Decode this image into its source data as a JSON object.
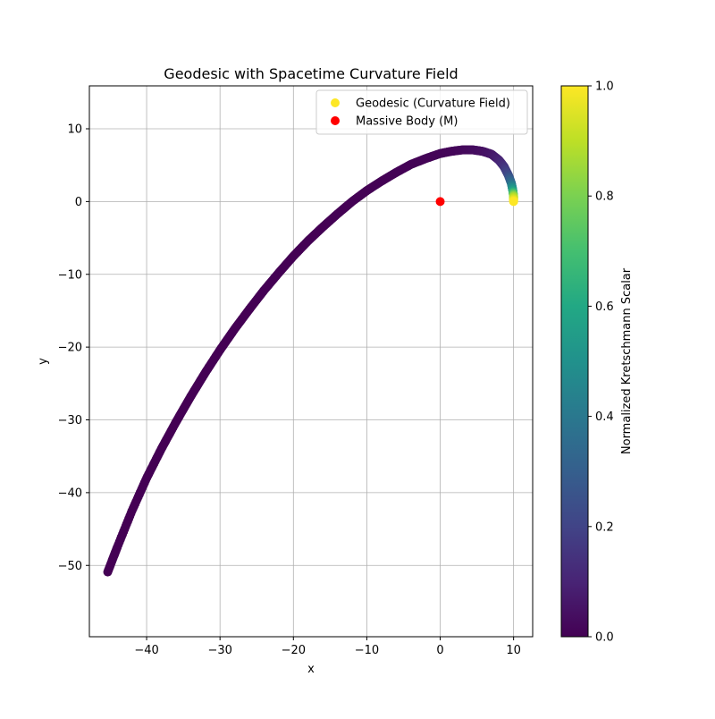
{
  "chart_data": {
    "type": "scatter",
    "title": "Geodesic with Spacetime Curvature Field",
    "xlabel": "x",
    "ylabel": "y",
    "xlim": [
      -47.8,
      12.6
    ],
    "ylim": [
      -59.8,
      15.9
    ],
    "xticks": [
      -40,
      -30,
      -20,
      -10,
      0,
      10
    ],
    "yticks": [
      -50,
      -40,
      -30,
      -20,
      -10,
      0,
      10
    ],
    "xtick_labels": [
      "−40",
      "−30",
      "−20",
      "−10",
      "0",
      "10"
    ],
    "ytick_labels": [
      "−50",
      "−40",
      "−30",
      "−20",
      "−10",
      "0",
      "10"
    ],
    "grid": true,
    "legend_position": "top-right",
    "legend": [
      {
        "label": "Geodesic (Curvature Field)",
        "color": "#fde725"
      },
      {
        "label": "Massive Body (M)",
        "color": "#ff0000"
      }
    ],
    "series": [
      {
        "name": "Geodesic (Curvature Field)",
        "color_by": "Normalized Kretschmann Scalar",
        "x": [
          10.0,
          10.0,
          9.9,
          9.7,
          9.3,
          8.7,
          8.0,
          7.0,
          5.8,
          4.5,
          3.0,
          1.5,
          0.0,
          -2.0,
          -4.0,
          -6.0,
          -8.0,
          -10.0,
          -12.0,
          -14.0,
          -16.0,
          -18.0,
          -20.0,
          -22.0,
          -24.0,
          -26.0,
          -28.0,
          -30.0,
          -32.0,
          -34.0,
          -36.0,
          -38.0,
          -40.0,
          -42.0,
          -44.0,
          -45.3
        ],
        "y": [
          0.0,
          0.7,
          1.5,
          2.5,
          3.6,
          4.8,
          5.7,
          6.5,
          6.9,
          7.1,
          7.1,
          6.9,
          6.6,
          5.9,
          5.1,
          4.0,
          2.8,
          1.5,
          0.0,
          -1.7,
          -3.5,
          -5.4,
          -7.5,
          -9.8,
          -12.2,
          -14.8,
          -17.5,
          -20.4,
          -23.5,
          -26.8,
          -30.3,
          -34.0,
          -38.0,
          -42.5,
          -47.5,
          -50.9
        ],
        "kretschmann": [
          1.0,
          0.85,
          0.55,
          0.35,
          0.22,
          0.14,
          0.09,
          0.06,
          0.04,
          0.03,
          0.02,
          0.015,
          0.01,
          0.008,
          0.006,
          0.005,
          0.004,
          0.003,
          0.002,
          0.002,
          0.001,
          0.001,
          0.001,
          0.0,
          0.0,
          0.0,
          0.0,
          0.0,
          0.0,
          0.0,
          0.0,
          0.0,
          0.0,
          0.0,
          0.0,
          0.0
        ]
      },
      {
        "name": "Massive Body (M)",
        "x": [
          0
        ],
        "y": [
          0
        ]
      }
    ],
    "colorbar": {
      "label": "Normalized Kretschmann Scalar",
      "range": [
        0.0,
        1.0
      ],
      "ticks": [
        0.0,
        0.2,
        0.4,
        0.6,
        0.8,
        1.0
      ],
      "tick_labels": [
        "0.0",
        "0.2",
        "0.4",
        "0.6",
        "0.8",
        "1.0"
      ],
      "colormap": "viridis"
    }
  }
}
